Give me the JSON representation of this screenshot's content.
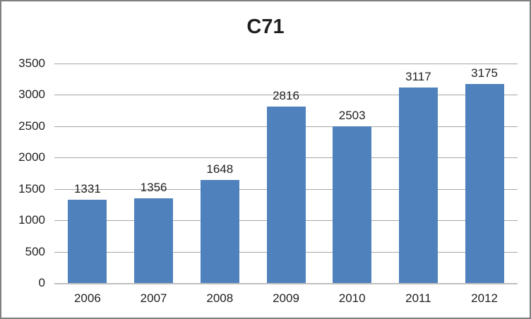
{
  "chart_data": {
    "type": "bar",
    "title": "C71",
    "categories": [
      "2006",
      "2007",
      "2008",
      "2009",
      "2010",
      "2011",
      "2012"
    ],
    "values": [
      1331,
      1356,
      1648,
      2816,
      2503,
      3117,
      3175
    ],
    "xlabel": "",
    "ylabel": "",
    "ylim": [
      0,
      3500
    ],
    "ytick_step": 500,
    "grid": true,
    "legend": "none",
    "data_labels": "above-bars",
    "colors": {
      "bar_fill": "#4f81bd",
      "gridline": "#a6a6a6",
      "axis_line": "#bfbfbf",
      "text": "#1f1f1f",
      "frame_border": "#7f7f7f",
      "background": "#ffffff"
    }
  }
}
